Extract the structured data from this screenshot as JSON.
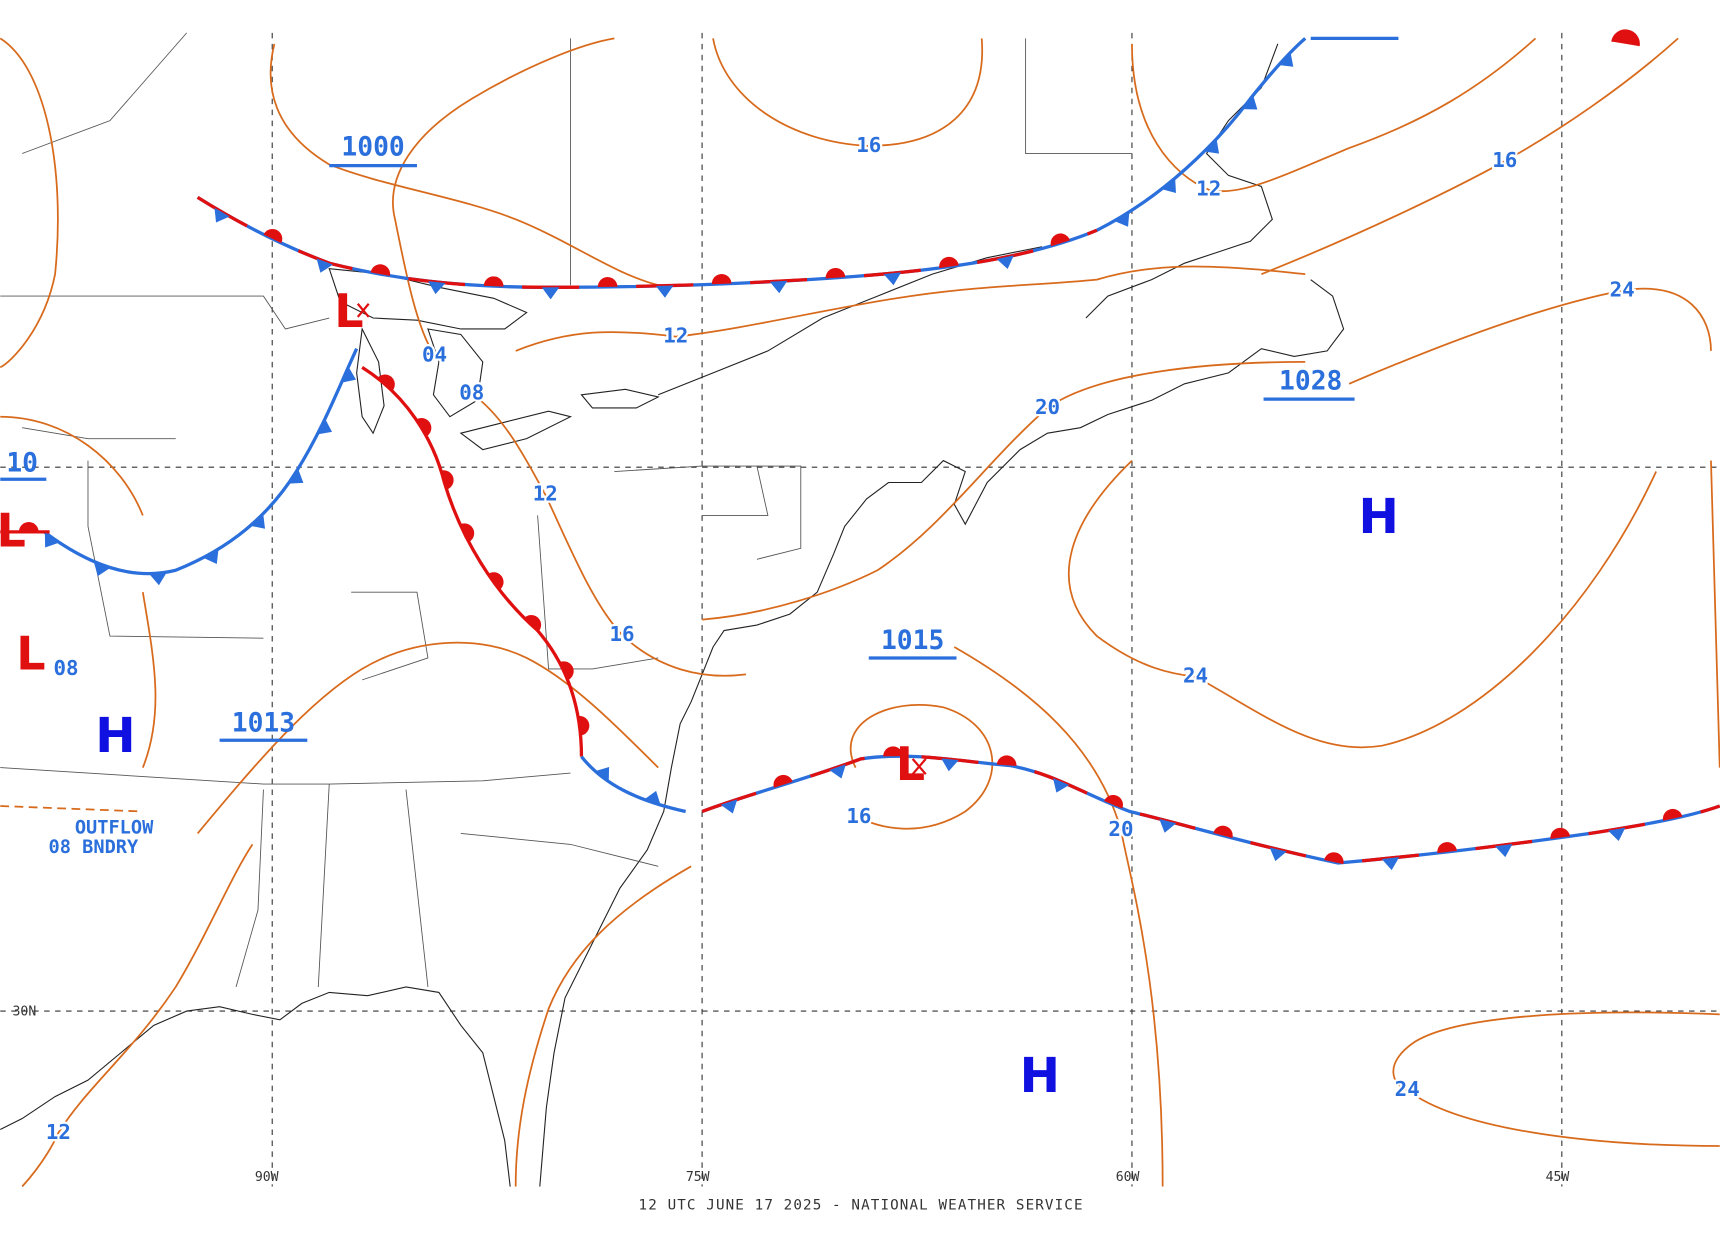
{
  "lows": [
    "L",
    "L",
    "L",
    "L"
  ],
  "highs": [
    "H",
    "H",
    "H"
  ],
  "central_pressures": [
    "1000",
    "1028",
    "1015",
    "1013",
    "10",
    "08"
  ],
  "isobar_labels": [
    "16",
    "16",
    "12",
    "12",
    "04",
    "08",
    "20",
    "12",
    "16",
    "24",
    "24",
    "16",
    "20",
    "24",
    "12"
  ],
  "boundary_label": [
    "OUTFLOW",
    "08 BNDRY"
  ],
  "longitudes": [
    "90W",
    "75W",
    "60W",
    "45W"
  ],
  "latitudes": [
    "30N"
  ],
  "footer": "12 UTC JUNE 17 2025 - NATIONAL WEATHER SERVICE"
}
